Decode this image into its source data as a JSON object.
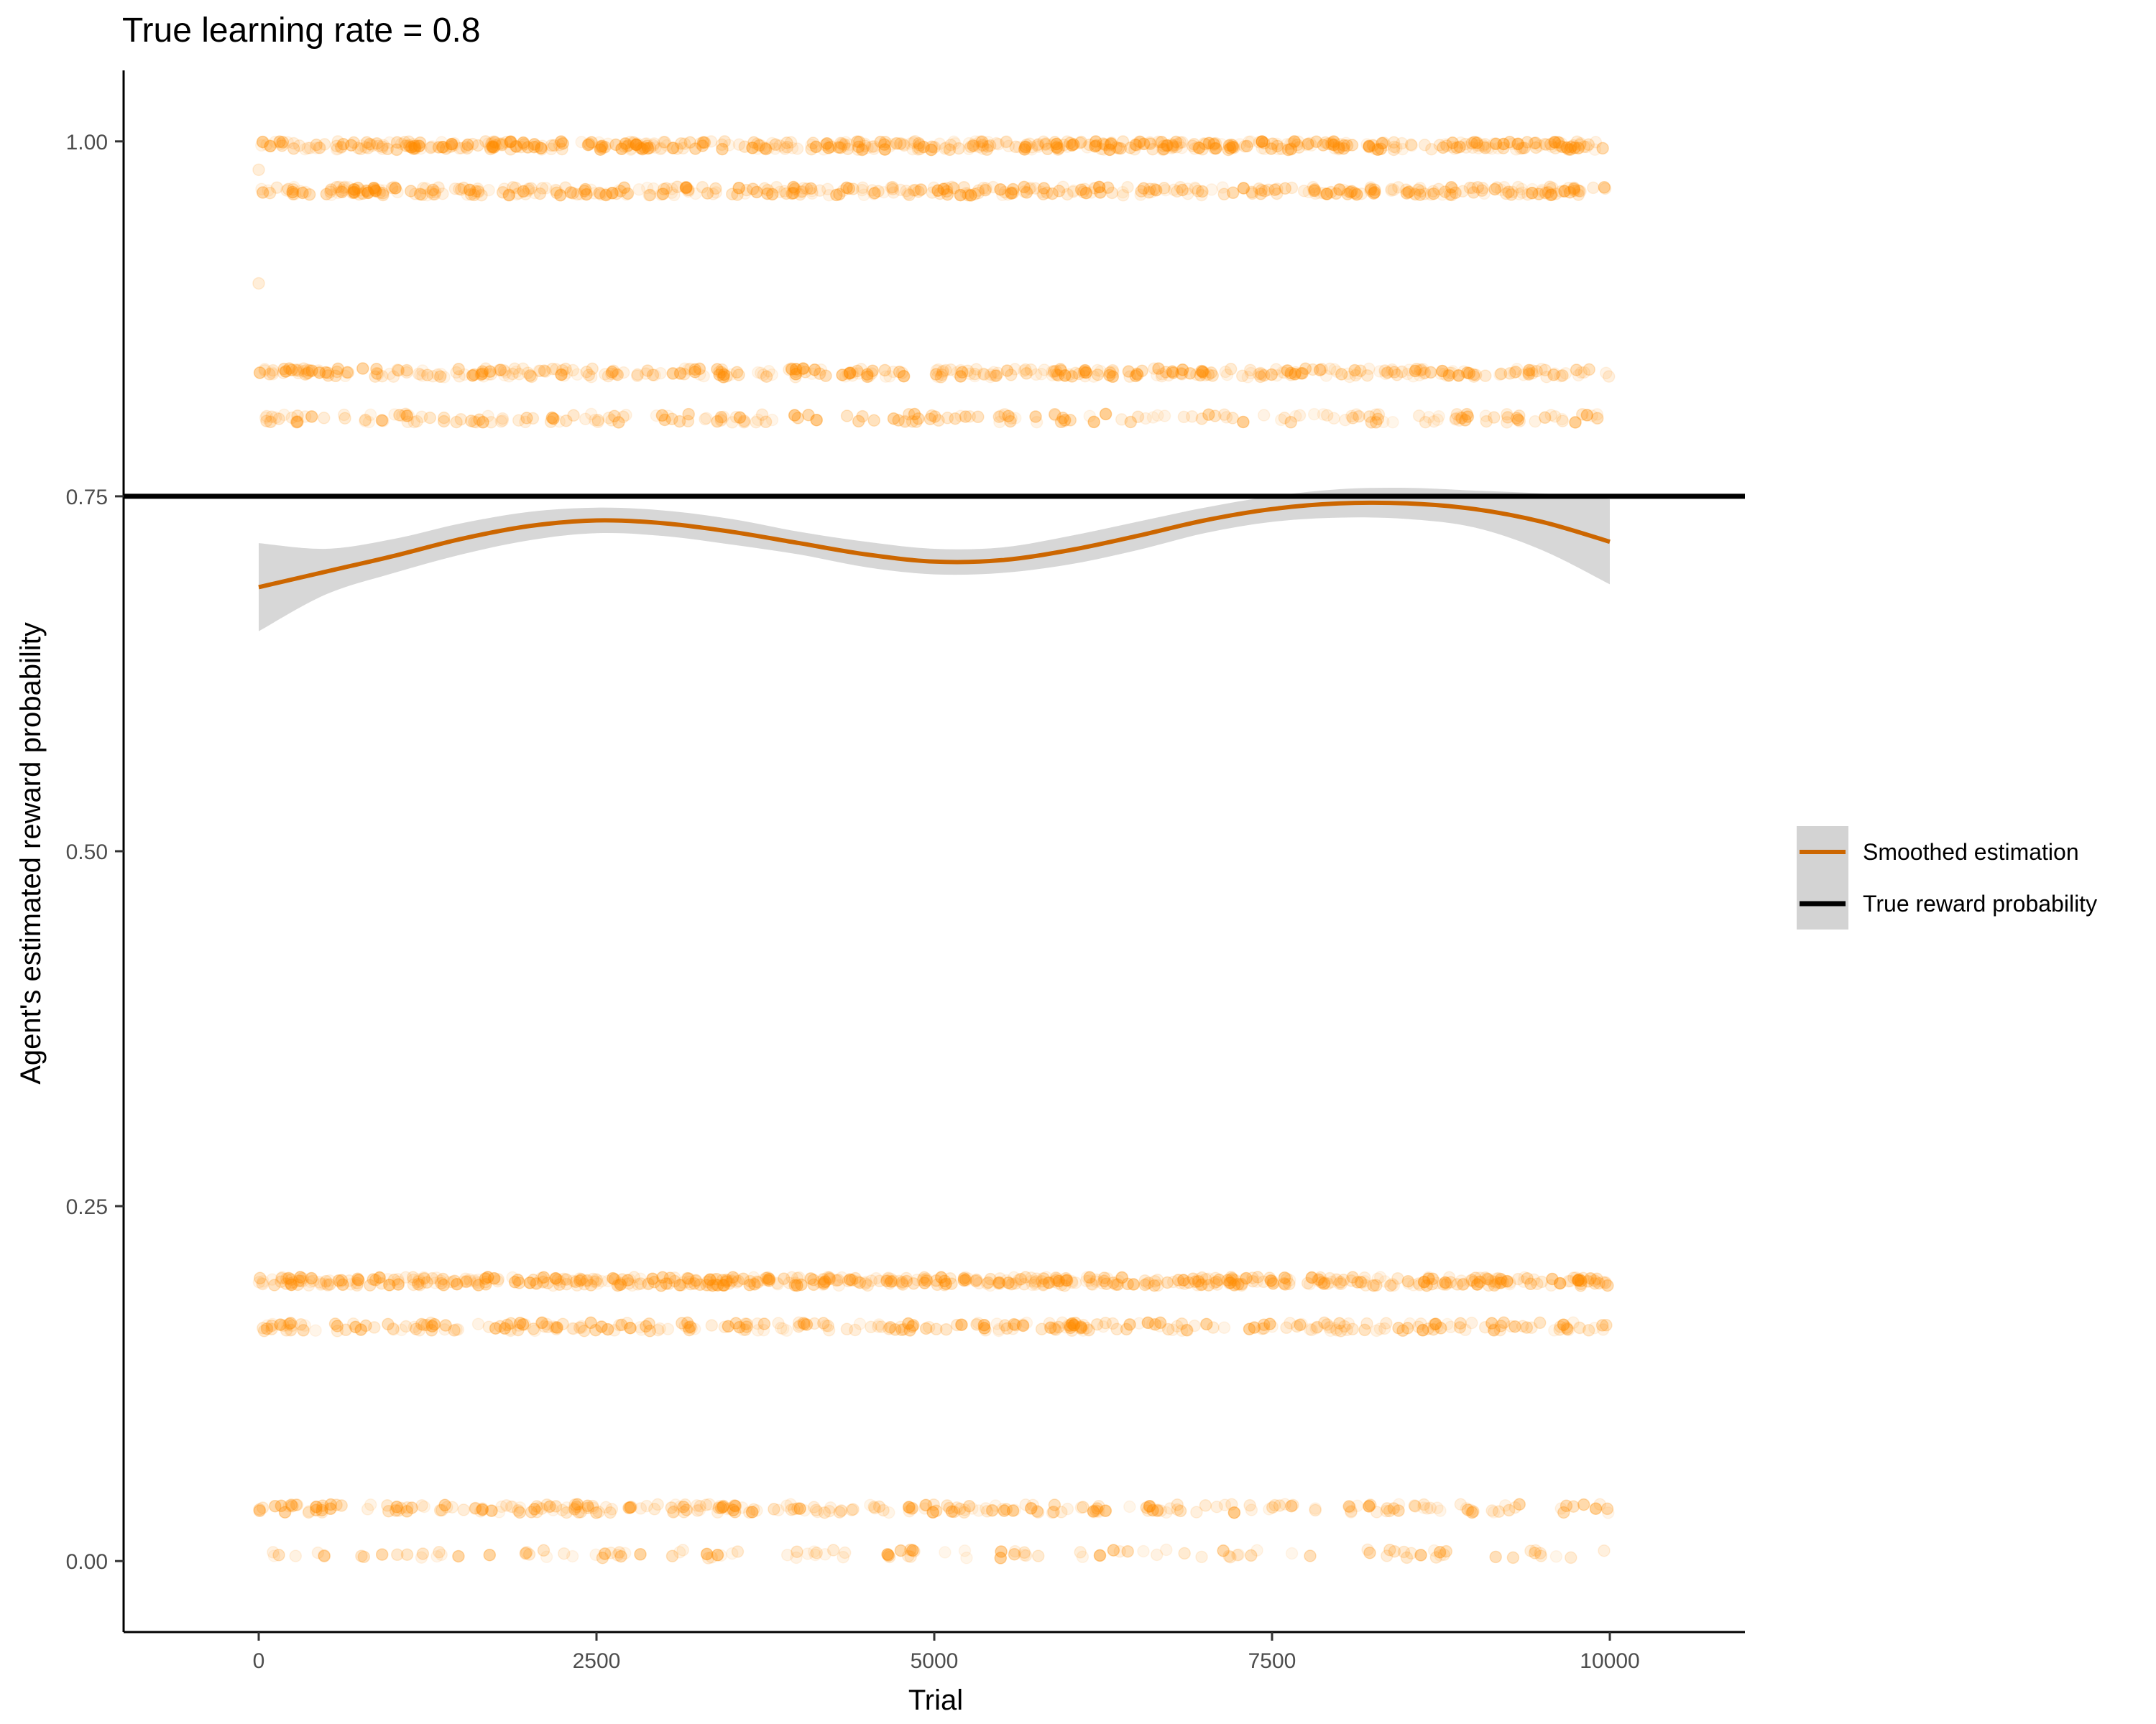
{
  "chart_data": {
    "type": "scatter",
    "title": "True learning rate = 0.8",
    "xlabel": "Trial",
    "ylabel": "Agent's estimated reward probability",
    "xlim": [
      -1000,
      11000
    ],
    "ylim": [
      -0.05,
      1.05
    ],
    "x_ticks": [
      0,
      2500,
      5000,
      7500,
      10000
    ],
    "y_ticks": [
      0.0,
      0.25,
      0.5,
      0.75,
      1.0
    ],
    "y_tick_labels": [
      "0.00",
      "0.25",
      "0.50",
      "0.75",
      "1.00"
    ],
    "grid": false,
    "legend_position": "right",
    "colors": {
      "points": "#FF8C00",
      "smooth_line": "#CC6600",
      "ribbon": "#D3D3D3",
      "reference_line": "#000000"
    },
    "reference_line": {
      "name": "True reward probability",
      "y": 0.75
    },
    "smooth": {
      "name": "Smoothed estimation",
      "x": [
        0,
        500,
        1000,
        1500,
        2000,
        2500,
        3000,
        3500,
        4000,
        4500,
        5000,
        5500,
        6000,
        6500,
        7000,
        7500,
        8000,
        8500,
        9000,
        9500,
        10000
      ],
      "y": [
        0.686,
        0.697,
        0.708,
        0.72,
        0.729,
        0.733,
        0.731,
        0.725,
        0.717,
        0.709,
        0.704,
        0.705,
        0.712,
        0.722,
        0.733,
        0.741,
        0.745,
        0.745,
        0.741,
        0.732,
        0.718
      ],
      "lower": [
        0.655,
        0.681,
        0.696,
        0.709,
        0.719,
        0.724,
        0.722,
        0.716,
        0.709,
        0.7,
        0.695,
        0.696,
        0.702,
        0.712,
        0.724,
        0.732,
        0.735,
        0.734,
        0.728,
        0.712,
        0.688
      ],
      "upper": [
        0.717,
        0.713,
        0.72,
        0.731,
        0.739,
        0.742,
        0.74,
        0.734,
        0.725,
        0.718,
        0.713,
        0.714,
        0.722,
        0.732,
        0.742,
        0.75,
        0.755,
        0.756,
        0.754,
        0.752,
        0.748
      ]
    },
    "points": {
      "x_range": [
        0,
        10000
      ],
      "bands": [
        {
          "y": 1.0,
          "density": 1.0
        },
        {
          "y": 0.968,
          "density": 0.75
        },
        {
          "y": 0.84,
          "density": 0.7
        },
        {
          "y": 0.808,
          "density": 0.4
        },
        {
          "y": 0.2,
          "density": 1.0
        },
        {
          "y": 0.168,
          "density": 0.55
        },
        {
          "y": 0.04,
          "density": 0.5
        },
        {
          "y": 0.008,
          "density": 0.22
        }
      ],
      "outliers": [
        {
          "x": 0,
          "y": 0.9
        },
        {
          "x": 0,
          "y": 0.98
        }
      ]
    }
  }
}
